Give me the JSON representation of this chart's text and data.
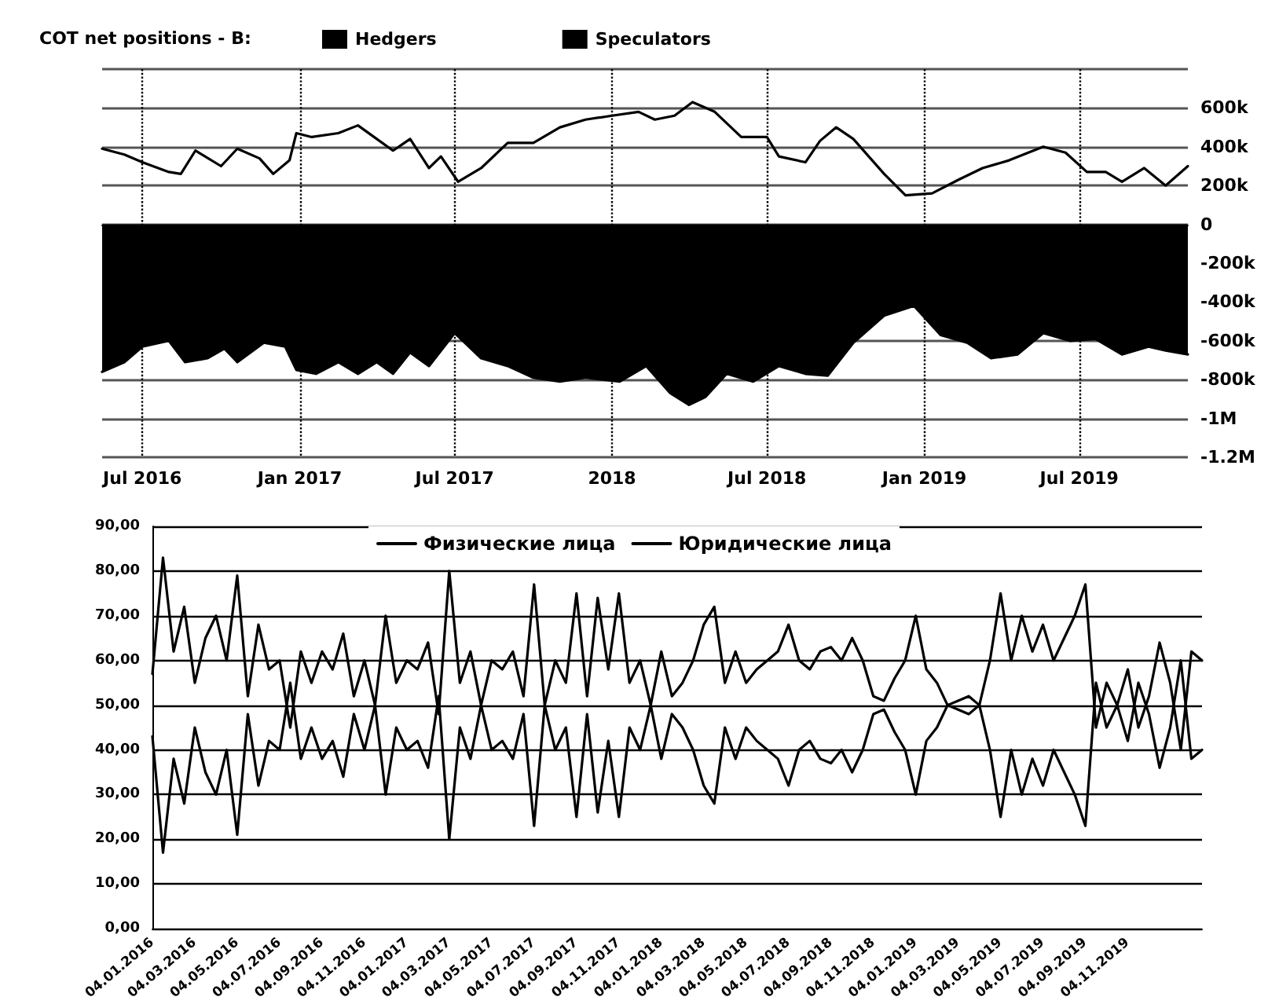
{
  "chart_data": [
    {
      "type": "line",
      "legend_title": "COT net positions - B:",
      "legend": "top left",
      "grid": true,
      "marker": "none",
      "xlim": [
        "2016-05-15",
        "2019-11-05"
      ],
      "xticks": [
        {
          "value": "2016-07-01",
          "label": "Jul 2016"
        },
        {
          "value": "2017-01-01",
          "label": "Jan 2017"
        },
        {
          "value": "2017-07-01",
          "label": "Jul 2017"
        },
        {
          "value": "2018-01-01",
          "label": "2018"
        },
        {
          "value": "2018-07-01",
          "label": "Jul 2018"
        },
        {
          "value": "2019-01-01",
          "label": "Jan 2019"
        },
        {
          "value": "2019-07-01",
          "label": "Jul 2019"
        }
      ],
      "ylim": [
        -1200000,
        800000
      ],
      "yticks": [
        {
          "value": 800000,
          "label": null
        },
        {
          "value": 600000,
          "label": "600k"
        },
        {
          "value": 400000,
          "label": "400k"
        },
        {
          "value": 200000,
          "label": "200k"
        },
        {
          "value": 0,
          "label": "0"
        },
        {
          "value": -200000,
          "label": "-200k"
        },
        {
          "value": -400000,
          "label": "-400k"
        },
        {
          "value": -600000,
          "label": "-600k"
        },
        {
          "value": -800000,
          "label": "-800k"
        },
        {
          "value": -1000000,
          "label": "-1M"
        },
        {
          "value": -1200000,
          "label": "-1.2M"
        }
      ],
      "series": [
        {
          "name": "Hedgers",
          "type": "line",
          "color": "#000000",
          "x": [
            "2016-05-15",
            "2016-06-10",
            "2016-07-01",
            "2016-08-01",
            "2016-08-15",
            "2016-09-01",
            "2016-10-01",
            "2016-10-20",
            "2016-11-15",
            "2016-12-01",
            "2016-12-20",
            "2016-12-28",
            "2017-01-15",
            "2017-02-15",
            "2017-03-10",
            "2017-04-01",
            "2017-04-20",
            "2017-05-10",
            "2017-06-01",
            "2017-06-15",
            "2017-07-05",
            "2017-08-01",
            "2017-09-01",
            "2017-10-01",
            "2017-11-01",
            "2017-12-01",
            "2018-01-01",
            "2018-02-01",
            "2018-02-20",
            "2018-03-15",
            "2018-04-05",
            "2018-05-01",
            "2018-06-01",
            "2018-07-01",
            "2018-07-15",
            "2018-08-15",
            "2018-09-01",
            "2018-09-20",
            "2018-10-10",
            "2018-11-15",
            "2018-12-10",
            "2019-01-10",
            "2019-02-10",
            "2019-03-10",
            "2019-04-10",
            "2019-05-20",
            "2019-06-15",
            "2019-07-10",
            "2019-08-01",
            "2019-08-20",
            "2019-09-15",
            "2019-10-10",
            "2019-11-05"
          ],
          "values": [
            390000,
            360000,
            320000,
            270000,
            260000,
            380000,
            300000,
            390000,
            340000,
            260000,
            330000,
            470000,
            450000,
            470000,
            510000,
            440000,
            380000,
            440000,
            290000,
            350000,
            220000,
            290000,
            420000,
            420000,
            500000,
            540000,
            560000,
            580000,
            540000,
            560000,
            630000,
            580000,
            450000,
            450000,
            350000,
            320000,
            430000,
            500000,
            440000,
            260000,
            150000,
            160000,
            230000,
            290000,
            330000,
            400000,
            370000,
            270000,
            270000,
            220000,
            290000,
            200000,
            300000
          ]
        },
        {
          "name": "Speculators",
          "type": "area",
          "color": "#000000",
          "x": [
            "2016-05-15",
            "2016-06-10",
            "2016-07-01",
            "2016-08-01",
            "2016-08-20",
            "2016-09-15",
            "2016-10-05",
            "2016-10-20",
            "2016-11-20",
            "2016-12-15",
            "2016-12-28",
            "2017-01-20",
            "2017-02-15",
            "2017-03-10",
            "2017-04-01",
            "2017-04-20",
            "2017-05-10",
            "2017-06-01",
            "2017-07-01",
            "2017-08-01",
            "2017-09-01",
            "2017-10-01",
            "2017-11-01",
            "2017-12-01",
            "2018-01-10",
            "2018-02-10",
            "2018-03-10",
            "2018-04-01",
            "2018-04-20",
            "2018-05-15",
            "2018-06-15",
            "2018-07-15",
            "2018-08-15",
            "2018-09-10",
            "2018-10-10",
            "2018-11-15",
            "2018-12-20",
            "2019-01-20",
            "2019-02-20",
            "2019-03-20",
            "2019-04-20",
            "2019-05-20",
            "2019-06-20",
            "2019-07-20",
            "2019-08-20",
            "2019-09-20",
            "2019-10-10",
            "2019-11-05"
          ],
          "values": [
            -760000,
            -710000,
            -630000,
            -600000,
            -710000,
            -690000,
            -640000,
            -710000,
            -610000,
            -630000,
            -750000,
            -770000,
            -710000,
            -770000,
            -710000,
            -770000,
            -660000,
            -730000,
            -560000,
            -690000,
            -730000,
            -790000,
            -810000,
            -790000,
            -810000,
            -730000,
            -870000,
            -930000,
            -890000,
            -770000,
            -810000,
            -730000,
            -770000,
            -780000,
            -610000,
            -470000,
            -420000,
            -570000,
            -610000,
            -690000,
            -670000,
            -560000,
            -600000,
            -590000,
            -670000,
            -630000,
            -650000,
            -670000
          ]
        }
      ]
    },
    {
      "type": "line",
      "legend": "top",
      "grid": "y",
      "marker": "none",
      "categories": [
        "04.01.2016",
        null,
        null,
        null,
        "04.03.2016",
        null,
        null,
        null,
        "04.05.2016",
        null,
        null,
        null,
        "04.07.2016",
        null,
        null,
        null,
        "04.09.2016",
        null,
        null,
        null,
        "04.11.2016",
        null,
        null,
        null,
        "04.01.2017",
        null,
        null,
        null,
        "04.03.2017",
        null,
        null,
        null,
        "04.05.2017",
        null,
        null,
        null,
        "04.07.2017",
        null,
        null,
        null,
        "04.09.2017",
        null,
        null,
        null,
        "04.11.2017",
        null,
        null,
        null,
        "04.01.2018",
        null,
        null,
        null,
        "04.03.2018",
        null,
        null,
        null,
        "04.05.2018",
        null,
        null,
        null,
        "04.07.2018",
        null,
        null,
        null,
        "04.09.2018",
        null,
        null,
        null,
        "04.11.2018",
        null,
        null,
        null,
        "04.01.2019",
        null,
        null,
        null,
        "04.03.2019",
        null,
        null,
        null,
        "04.05.2019",
        null,
        null,
        null,
        "04.07.2019",
        null,
        null,
        null,
        "04.09.2019",
        null,
        null,
        null,
        "04.11.2019",
        null,
        null,
        null,
        null,
        null,
        null,
        null
      ],
      "ylim": [
        0,
        90
      ],
      "yticks": [
        {
          "value": 0,
          "label": "0,00"
        },
        {
          "value": 10,
          "label": "10,00"
        },
        {
          "value": 20,
          "label": "20,00"
        },
        {
          "value": 30,
          "label": "30,00"
        },
        {
          "value": 40,
          "label": "40,00"
        },
        {
          "value": 50,
          "label": "50,00"
        },
        {
          "value": 60,
          "label": "60,00"
        },
        {
          "value": 70,
          "label": "70,00"
        },
        {
          "value": 80,
          "label": "80,00"
        },
        {
          "value": 90,
          "label": "90,00"
        }
      ],
      "series": [
        {
          "name": "Физические лица",
          "color": "#000000",
          "values": [
            57,
            83,
            62,
            72,
            55,
            65,
            70,
            60,
            79,
            52,
            68,
            58,
            60,
            45,
            62,
            55,
            62,
            58,
            66,
            52,
            60,
            50,
            70,
            55,
            60,
            58,
            64,
            48,
            80,
            55,
            62,
            50,
            60,
            58,
            62,
            52,
            77,
            50,
            60,
            55,
            75,
            52,
            74,
            58,
            75,
            55,
            60,
            50,
            62,
            52,
            55,
            60,
            68,
            72,
            55,
            62,
            55,
            58,
            60,
            62,
            68,
            60,
            58,
            62,
            63,
            60,
            65,
            60,
            52,
            51,
            56,
            60,
            70,
            58,
            55,
            50,
            51,
            52,
            50,
            60,
            75,
            60,
            70,
            62,
            68,
            60,
            65,
            70,
            77,
            45,
            55,
            50,
            58,
            45,
            52,
            64,
            55,
            40,
            62,
            60
          ]
        },
        {
          "name": "Юридические лица",
          "color": "#000000",
          "values": [
            43,
            17,
            38,
            28,
            45,
            35,
            30,
            40,
            21,
            48,
            32,
            42,
            40,
            55,
            38,
            45,
            38,
            42,
            34,
            48,
            40,
            50,
            30,
            45,
            40,
            42,
            36,
            52,
            20,
            45,
            38,
            50,
            40,
            42,
            38,
            48,
            23,
            50,
            40,
            45,
            25,
            48,
            26,
            42,
            25,
            45,
            40,
            50,
            38,
            48,
            45,
            40,
            32,
            28,
            45,
            38,
            45,
            42,
            40,
            38,
            32,
            40,
            42,
            38,
            37,
            40,
            35,
            40,
            48,
            49,
            44,
            40,
            30,
            42,
            45,
            50,
            49,
            48,
            50,
            40,
            25,
            40,
            30,
            38,
            32,
            40,
            35,
            30,
            23,
            55,
            45,
            50,
            42,
            55,
            48,
            36,
            45,
            60,
            38,
            40
          ]
        }
      ]
    }
  ]
}
